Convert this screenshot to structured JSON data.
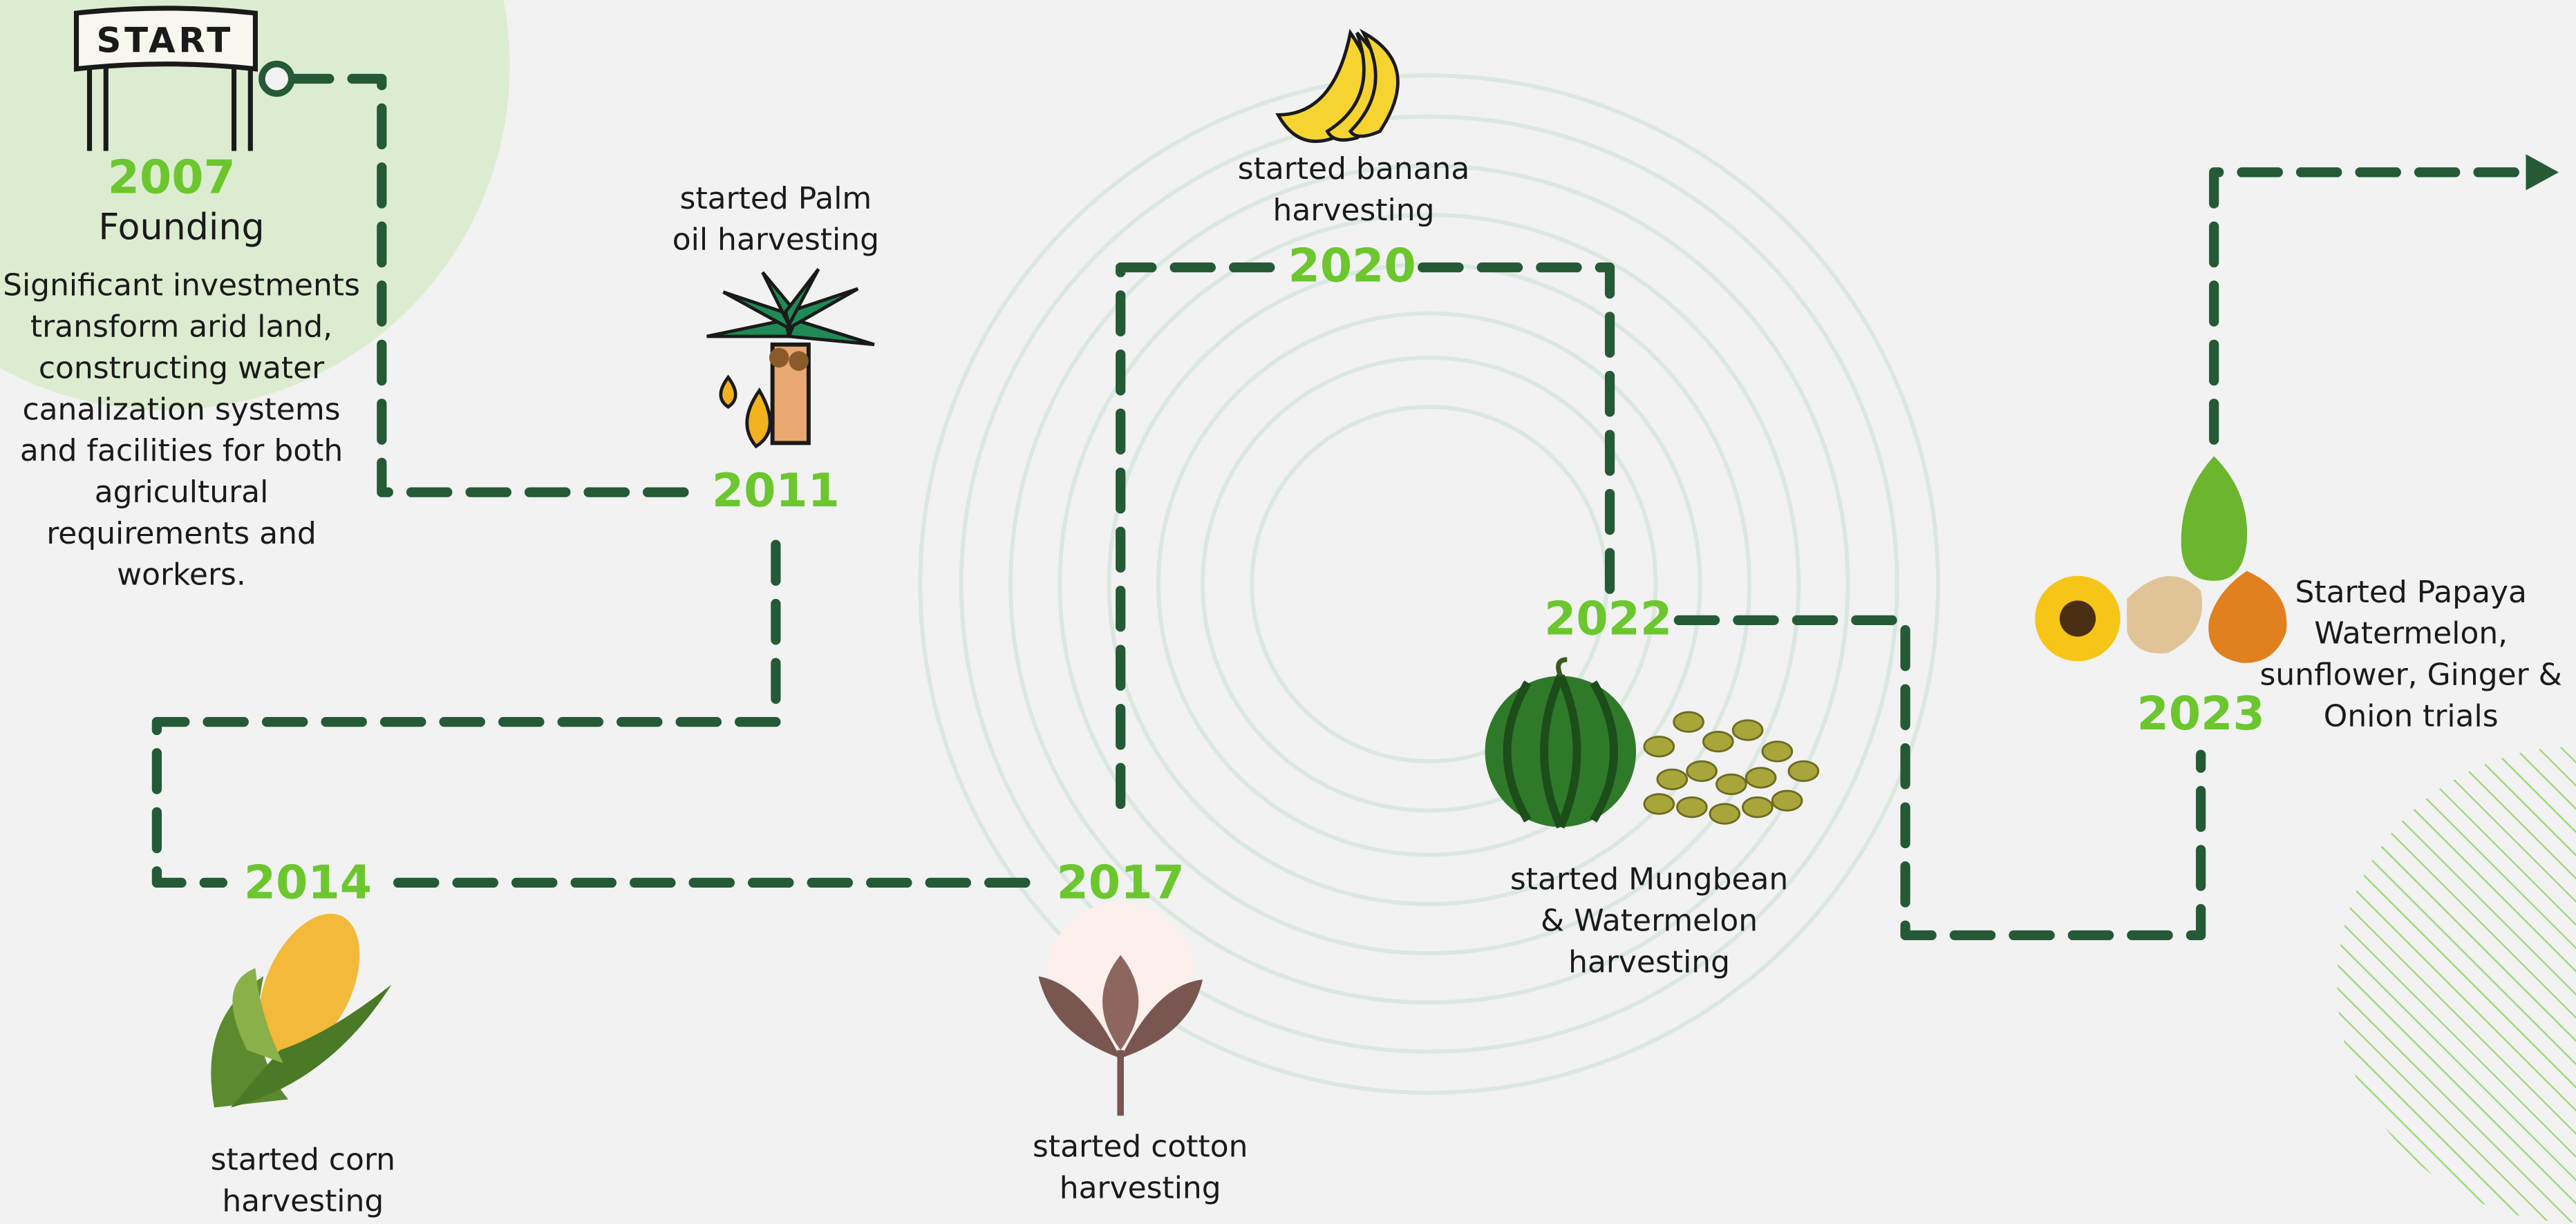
{
  "start_label": "START",
  "milestones": [
    {
      "year": "2007",
      "title": "Founding",
      "description": [
        "Significant investments",
        "transform arid land,",
        "constructing water",
        "canalization systems",
        "and facilities for both",
        "agricultural",
        "requirements and",
        "workers."
      ]
    },
    {
      "year": "2011",
      "description": [
        "started Palm",
        "oil harvesting"
      ]
    },
    {
      "year": "2014",
      "description": [
        "started corn",
        "harvesting"
      ]
    },
    {
      "year": "2017",
      "description": [
        "started cotton",
        "harvesting"
      ]
    },
    {
      "year": "2020",
      "description": [
        "started banana",
        "harvesting"
      ]
    },
    {
      "year": "2022",
      "description": [
        "started Mungbean",
        "& Watermelon",
        "harvesting"
      ]
    },
    {
      "year": "2023",
      "description": [
        "Started Papaya",
        "Watermelon,",
        "sunflower, Ginger &",
        "Onion trials"
      ]
    }
  ]
}
